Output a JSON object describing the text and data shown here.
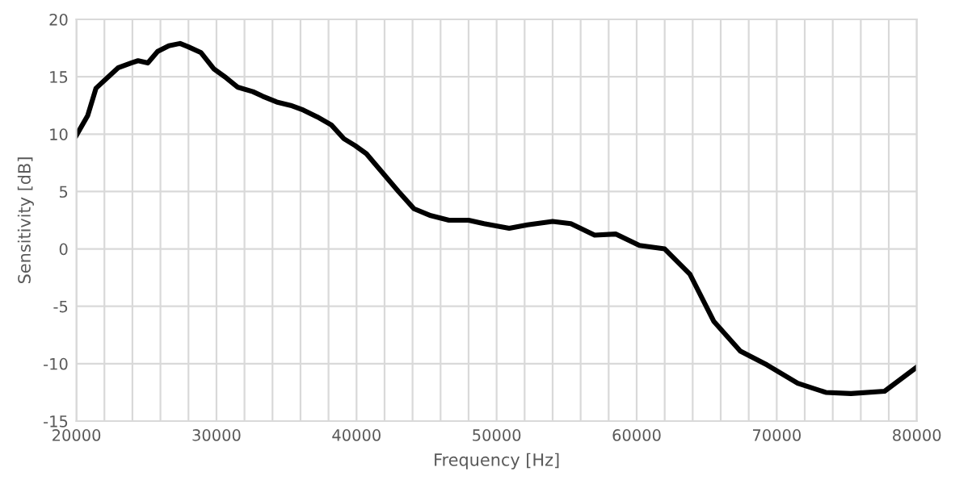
{
  "chart_data": {
    "type": "line",
    "xlabel": "Frequency [Hz]",
    "ylabel": "Sensitivity [dB]",
    "x": [
      20000,
      20800,
      21400,
      22200,
      23000,
      23900,
      24400,
      25100,
      25800,
      26600,
      27400,
      28000,
      28900,
      29800,
      30700,
      31500,
      32600,
      33300,
      34300,
      35300,
      36200,
      37200,
      38200,
      39100,
      39900,
      40700,
      43000,
      44100,
      45300,
      46600,
      48000,
      49100,
      50900,
      52200,
      54000,
      55300,
      57000,
      58500,
      60200,
      62000,
      63800,
      65500,
      67400,
      69300,
      71500,
      73500,
      75300,
      77700,
      80000
    ],
    "series": [
      {
        "color": "#000000",
        "values": [
          9.9,
          11.6,
          14.0,
          14.9,
          15.8,
          16.2,
          16.4,
          16.2,
          17.2,
          17.7,
          17.9,
          17.6,
          17.1,
          15.7,
          14.9,
          14.1,
          13.7,
          13.3,
          12.8,
          12.5,
          12.1,
          11.5,
          10.8,
          9.6,
          9.0,
          8.3,
          5.0,
          3.5,
          2.9,
          2.5,
          2.5,
          2.2,
          1.8,
          2.1,
          2.4,
          2.2,
          1.2,
          1.3,
          0.3,
          0.0,
          -2.2,
          -6.3,
          -8.9,
          -10.1,
          -11.7,
          -12.5,
          -12.6,
          -12.4,
          -10.3
        ]
      }
    ],
    "xlim": [
      20000,
      80000
    ],
    "ylim": [
      -15,
      20
    ],
    "xticks": [
      20000,
      {
        "value": 22000,
        "label": null
      },
      {
        "value": 24000,
        "label": null
      },
      {
        "value": 26000,
        "label": null
      },
      {
        "value": 28000,
        "label": null
      },
      30000,
      {
        "value": 32000,
        "label": null
      },
      {
        "value": 34000,
        "label": null
      },
      {
        "value": 36000,
        "label": null
      },
      {
        "value": 38000,
        "label": null
      },
      40000,
      {
        "value": 42000,
        "label": null
      },
      {
        "value": 44000,
        "label": null
      },
      {
        "value": 46000,
        "label": null
      },
      {
        "value": 48000,
        "label": null
      },
      50000,
      {
        "value": 52000,
        "label": null
      },
      {
        "value": 54000,
        "label": null
      },
      {
        "value": 56000,
        "label": null
      },
      {
        "value": 58000,
        "label": null
      },
      60000,
      {
        "value": 62000,
        "label": null
      },
      {
        "value": 64000,
        "label": null
      },
      {
        "value": 66000,
        "label": null
      },
      {
        "value": 68000,
        "label": null
      },
      70000,
      {
        "value": 72000,
        "label": null
      },
      {
        "value": 74000,
        "label": null
      },
      {
        "value": 76000,
        "label": null
      },
      {
        "value": 78000,
        "label": null
      },
      80000
    ],
    "yticks": [
      -15,
      -10,
      -5,
      0,
      5,
      10,
      15,
      20
    ],
    "grid": true,
    "legend": false,
    "marker": "none",
    "line_style": "solid"
  }
}
